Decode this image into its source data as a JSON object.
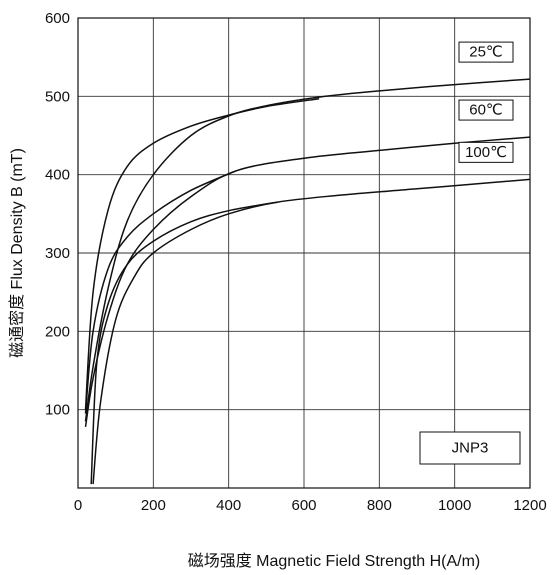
{
  "chart_data": {
    "type": "line",
    "xlabel": "磁场强度  Magnetic Field Strength H(A/m)",
    "ylabel": "磁通密度  Flux Density B (mT)",
    "xlim": [
      0,
      1200
    ],
    "ylim": [
      0,
      600
    ],
    "xticks": [
      0,
      200,
      400,
      600,
      800,
      1000,
      1200
    ],
    "yticks": [
      100,
      200,
      300,
      400,
      500,
      600
    ],
    "grid": true,
    "material_label": "JNP3",
    "series": [
      {
        "name": "25℃",
        "branch_upper": {
          "x": [
            20,
            40,
            80,
            130,
            200,
            300,
            400,
            500,
            640
          ],
          "y": [
            100,
            250,
            355,
            410,
            440,
            462,
            476,
            487,
            497
          ]
        },
        "branch_lower": {
          "x": [
            20,
            40,
            80,
            130,
            200,
            300,
            400,
            500,
            640,
            800,
            1000,
            1200
          ],
          "y": [
            85,
            155,
            255,
            340,
            400,
            450,
            475,
            488,
            499,
            507,
            515,
            522
          ]
        }
      },
      {
        "name": "60℃",
        "branch_upper": {
          "x": [
            20,
            40,
            80,
            130,
            200,
            300,
            420
          ],
          "y": [
            95,
            200,
            280,
            320,
            350,
            380,
            405
          ]
        },
        "branch_lower": {
          "x": [
            20,
            40,
            80,
            130,
            200,
            300,
            420,
            600,
            800,
            1000,
            1200
          ],
          "y": [
            78,
            140,
            220,
            285,
            330,
            372,
            405,
            421,
            431,
            440,
            448
          ]
        }
      },
      {
        "name": "100℃",
        "branch_upper": {
          "x": [
            35,
            50,
            80,
            130,
            200,
            300,
            400,
            530
          ],
          "y": [
            5,
            160,
            235,
            285,
            315,
            340,
            354,
            365
          ]
        },
        "branch_lower": {
          "x": [
            40,
            60,
            100,
            150,
            200,
            300,
            400,
            530,
            700,
            900,
            1100,
            1200
          ],
          "y": [
            5,
            110,
            215,
            270,
            300,
            330,
            350,
            365,
            374,
            382,
            390,
            394
          ]
        }
      }
    ]
  }
}
